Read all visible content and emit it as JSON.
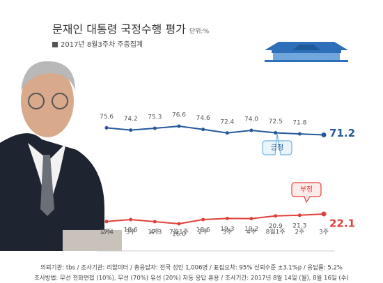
{
  "chart_data": {
    "type": "line",
    "title": "문재인 대통령 국정수행 평가",
    "unit": "단위:%",
    "subtitle": "2017년 8월3주차 주중집계",
    "categories": [
      "2주",
      "3주",
      "4주",
      "7월1주",
      "2주",
      "3주",
      "4주",
      "8월1주",
      "2주",
      "3주"
    ],
    "series": [
      {
        "name": "긍정",
        "color": "#25589a",
        "values": [
          75.6,
          74.2,
          75.3,
          76.6,
          74.6,
          72.4,
          74.0,
          72.5,
          71.8,
          71.2
        ],
        "value_labels": [
          "75.6",
          "74.2",
          "75.3",
          "76.6",
          "74.6",
          "72.4",
          "74.0",
          "72.5",
          "71.8",
          "71.2"
        ]
      },
      {
        "name": "부정",
        "color": "#e0403a",
        "values": [
          17.4,
          18.6,
          17.3,
          16.0,
          18.6,
          19.3,
          19.2,
          20.9,
          21.3,
          22.1
        ],
        "value_labels": [
          "17.4",
          "18.6",
          "17.3",
          "16.0",
          "18.6",
          "19.3",
          "19.2",
          "20.9",
          "21.3",
          "22.1"
        ]
      }
    ],
    "ylim": [
      0,
      100
    ],
    "footnotes": [
      "의뢰기관: tbs / 조사기관: 리얼미터 / 총응답자: 전국 성인 1,006명 / 표집오차: 95% 신뢰수준 ±3.1%p / 응답률: 5.2%",
      "조사방법: 무선 전화면접 (10%), 무선 (70%) 유선 (20%) 자동 응답 혼용 / 조사기간: 2017년 8월 14일 (월), 8월 16일 (수)"
    ]
  }
}
